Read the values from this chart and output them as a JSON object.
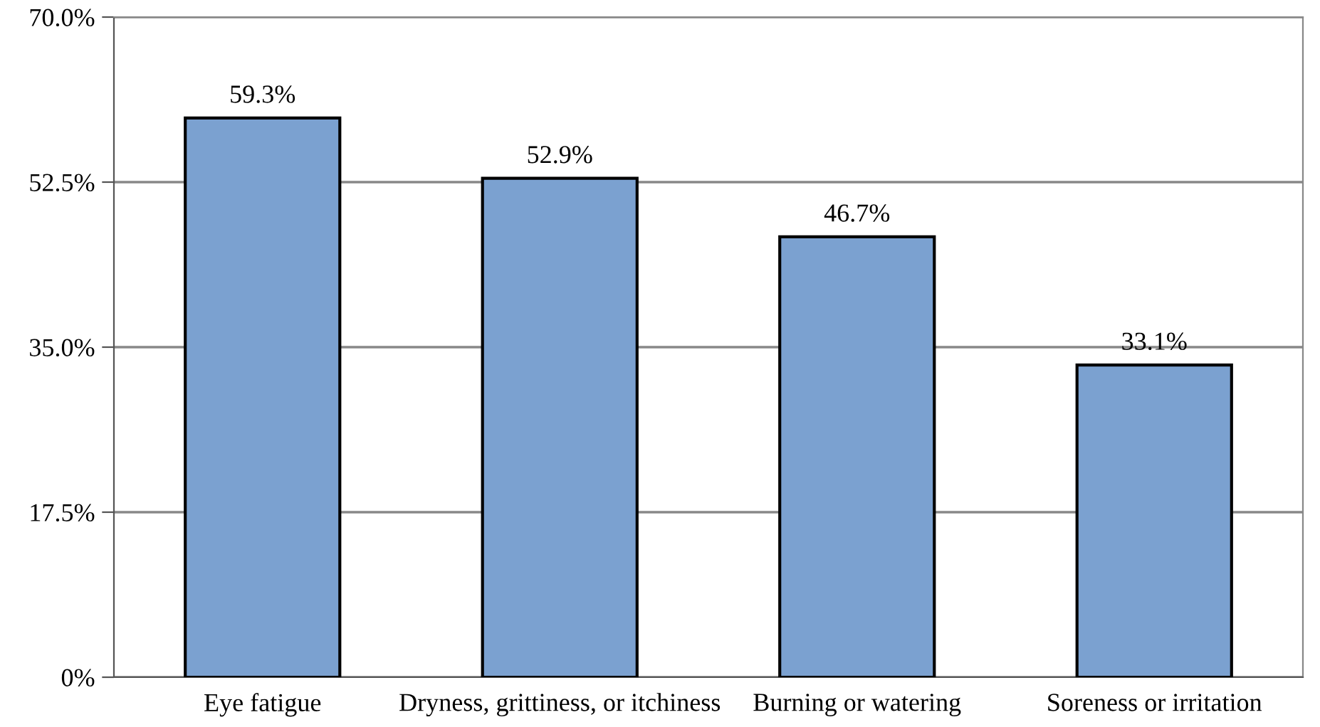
{
  "chart_data": {
    "type": "bar",
    "categories": [
      "Eye fatigue",
      "Dryness, grittiness, or itchiness",
      "Burning or watering",
      "Soreness or irritation"
    ],
    "values": [
      59.3,
      52.9,
      46.7,
      33.1
    ],
    "value_labels": [
      "59.3%",
      "52.9%",
      "46.7%",
      "33.1%"
    ],
    "color": "#7ba1d0",
    "ylim": [
      0,
      70
    ],
    "yticks": [
      {
        "value": 0,
        "label": "0%"
      },
      {
        "value": 17.5,
        "label": "17.5%"
      },
      {
        "value": 35,
        "label": "35.0%"
      },
      {
        "value": 52.5,
        "label": "52.5%"
      },
      {
        "value": 70,
        "label": "70.0%"
      }
    ],
    "grid": "y",
    "legend": false
  }
}
